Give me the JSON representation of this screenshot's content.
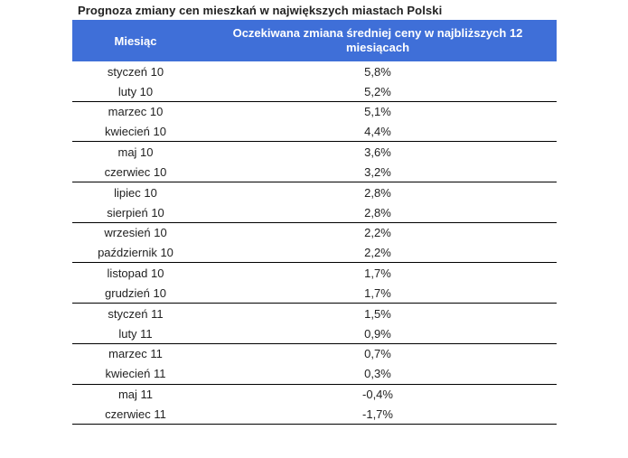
{
  "title": "Prognoza zmiany cen mieszkań w największych miastach Polski",
  "colors": {
    "header_bg": "#3f6fd8",
    "header_text": "#ffffff",
    "separator": "#000000"
  },
  "chart_data": {
    "type": "table",
    "title": "Prognoza zmiany cen mieszkań w największych miastach Polski",
    "columns": [
      "Miesiąc",
      "Oczekiwana zmiana średniej ceny w najbliższych 12 miesiącach"
    ],
    "rows": [
      {
        "month": "styczeń 10",
        "value": "5,8%"
      },
      {
        "month": "luty 10",
        "value": "5,2%"
      },
      {
        "month": "marzec 10",
        "value": "5,1%"
      },
      {
        "month": "kwiecień 10",
        "value": "4,4%"
      },
      {
        "month": "maj 10",
        "value": "3,6%"
      },
      {
        "month": "czerwiec 10",
        "value": "3,2%"
      },
      {
        "month": "lipiec 10",
        "value": "2,8%"
      },
      {
        "month": "sierpień 10",
        "value": "2,8%"
      },
      {
        "month": "wrzesień 10",
        "value": "2,2%"
      },
      {
        "month": "październik 10",
        "value": "2,2%"
      },
      {
        "month": "listopad 10",
        "value": "1,7%"
      },
      {
        "month": "grudzień 10",
        "value": "1,7%"
      },
      {
        "month": "styczeń 11",
        "value": "1,5%"
      },
      {
        "month": "luty 11",
        "value": "0,9%"
      },
      {
        "month": "marzec 11",
        "value": "0,7%"
      },
      {
        "month": "kwiecień 11",
        "value": "0,3%"
      },
      {
        "month": "maj 11",
        "value": "-0,4%"
      },
      {
        "month": "czerwiec 11",
        "value": "-1,7%"
      }
    ]
  }
}
